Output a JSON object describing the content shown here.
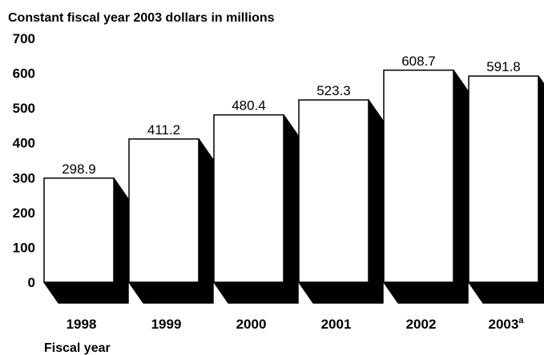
{
  "chart_data": {
    "type": "bar",
    "title": "",
    "ylabel": "Constant fiscal year 2003 dollars in millions",
    "xlabel": "Fiscal year",
    "categories": [
      "1998",
      "1999",
      "2000",
      "2001",
      "2002",
      "2003"
    ],
    "category_superscripts": [
      "",
      "",
      "",
      "",
      "",
      "a"
    ],
    "values": [
      298.9,
      411.2,
      480.4,
      523.3,
      608.7,
      591.8
    ],
    "value_labels": [
      "298.9",
      "411.2",
      "480.4",
      "523.3",
      "608.7",
      "591.8"
    ],
    "ylim": [
      0,
      700
    ],
    "yticks": [
      "0",
      "100",
      "200",
      "300",
      "400",
      "500",
      "600",
      "700"
    ],
    "grid": false,
    "style": "3d-shadow",
    "colors": {
      "bar_face": "#ffffff",
      "bar_shadow": "#000000",
      "outline": "#000000"
    }
  }
}
